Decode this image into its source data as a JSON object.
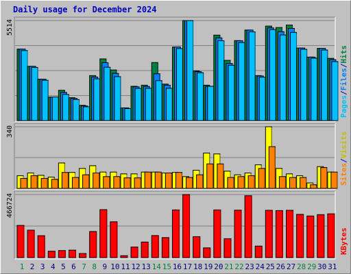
{
  "title": "Daily usage for December 2024",
  "colors": {
    "hits": "#008040",
    "files": "#0080ff",
    "pages": "#00c0ff",
    "visits": "#ffff00",
    "sites": "#ff8000",
    "kbytes": "#ff0000",
    "daylabel": "#000080",
    "weekend": "#008040",
    "axislabel": "#000000",
    "panel": "#c0c0c0",
    "grid": "#808080",
    "sep": "#0000c0"
  },
  "chart_data": [
    {
      "type": "bar",
      "panel": "hits_files_pages",
      "categories": [
        "1",
        "2",
        "3",
        "4",
        "5",
        "6",
        "7",
        "8",
        "9",
        "10",
        "11",
        "12",
        "13",
        "14",
        "15",
        "16",
        "17",
        "18",
        "19",
        "20",
        "21",
        "22",
        "23",
        "24",
        "25",
        "26",
        "27",
        "28",
        "29",
        "30",
        "31"
      ],
      "weekend_days": [
        "1",
        "7",
        "8",
        "14",
        "15",
        "21",
        "22",
        "28",
        "29"
      ],
      "ymax_label": "5514",
      "ylim": [
        0,
        5514
      ],
      "ylabel_parts": [
        {
          "name": "pages",
          "text": "Pages"
        },
        {
          "name": "sep1",
          "text": "/"
        },
        {
          "name": "files",
          "text": "Files"
        },
        {
          "name": "sep2",
          "text": "/"
        },
        {
          "name": "hits",
          "text": "Hits"
        }
      ],
      "series": [
        {
          "name": "Hits",
          "values": [
            3940,
            2990,
            2280,
            1300,
            1670,
            1260,
            840,
            2480,
            3400,
            2790,
            700,
            1890,
            1950,
            3200,
            2010,
            4060,
            5514,
            2740,
            1950,
            4710,
            3320,
            4410,
            4990,
            2480,
            5210,
            5130,
            5270,
            4000,
            3500,
            3980,
            3430
          ]
        },
        {
          "name": "Files",
          "values": [
            3940,
            2990,
            2280,
            1300,
            1550,
            1220,
            810,
            2400,
            3190,
            2600,
            700,
            1860,
            1880,
            2580,
            1950,
            4060,
            5514,
            2700,
            1890,
            4560,
            3150,
            4400,
            4990,
            2460,
            5110,
            4900,
            5080,
            4000,
            3500,
            3980,
            3360
          ]
        },
        {
          "name": "Pages",
          "values": [
            3860,
            2930,
            2220,
            1300,
            1440,
            1160,
            760,
            2300,
            2940,
            2420,
            660,
            1770,
            1780,
            2200,
            1780,
            3970,
            5514,
            2640,
            1890,
            4400,
            3050,
            4300,
            4890,
            2390,
            5010,
            4720,
            4860,
            3930,
            3440,
            3890,
            3250
          ]
        }
      ]
    },
    {
      "type": "bar",
      "panel": "visits_sites",
      "categories": [
        "1",
        "2",
        "3",
        "4",
        "5",
        "6",
        "7",
        "8",
        "9",
        "10",
        "11",
        "12",
        "13",
        "14",
        "15",
        "16",
        "17",
        "18",
        "19",
        "20",
        "21",
        "22",
        "23",
        "24",
        "25",
        "26",
        "27",
        "28",
        "29",
        "30",
        "31"
      ],
      "ymax_label": "340",
      "ylim": [
        0,
        340
      ],
      "ylabel_parts": [
        {
          "name": "sites",
          "text": "Sites"
        },
        {
          "name": "sep1",
          "text": "/"
        },
        {
          "name": "visits",
          "text": "Visits"
        }
      ],
      "series": [
        {
          "name": "Visits",
          "values": [
            70,
            85,
            72,
            62,
            140,
            88,
            110,
            125,
            90,
            90,
            80,
            80,
            90,
            90,
            85,
            88,
            65,
            100,
            195,
            190,
            95,
            75,
            85,
            130,
            340,
            110,
            80,
            70,
            30,
            120,
            90
          ]
        },
        {
          "name": "Sites",
          "values": [
            55,
            70,
            55,
            50,
            88,
            60,
            75,
            85,
            65,
            65,
            58,
            58,
            90,
            90,
            85,
            88,
            60,
            75,
            135,
            135,
            60,
            65,
            70,
            110,
            230,
            65,
            60,
            60,
            20,
            115,
            90
          ]
        }
      ]
    },
    {
      "type": "bar",
      "panel": "kbytes",
      "categories": [
        "1",
        "2",
        "3",
        "4",
        "5",
        "6",
        "7",
        "8",
        "9",
        "10",
        "11",
        "12",
        "13",
        "14",
        "15",
        "16",
        "17",
        "18",
        "19",
        "20",
        "21",
        "22",
        "23",
        "24",
        "25",
        "26",
        "27",
        "28",
        "29",
        "30",
        "31"
      ],
      "ymax_label": "466724",
      "ylim": [
        0,
        466724
      ],
      "ylabel_parts": [
        {
          "name": "kbytes",
          "text": "KBytes"
        }
      ],
      "series": [
        {
          "name": "KBytes",
          "values": [
            238000,
            203000,
            162000,
            47000,
            52000,
            55000,
            30000,
            193000,
            355000,
            265000,
            14000,
            78000,
            115000,
            163000,
            148000,
            353000,
            466724,
            155000,
            72000,
            353000,
            140000,
            351000,
            458000,
            85000,
            350000,
            348000,
            350000,
            320000,
            308000,
            318000,
            324000
          ]
        }
      ]
    }
  ]
}
